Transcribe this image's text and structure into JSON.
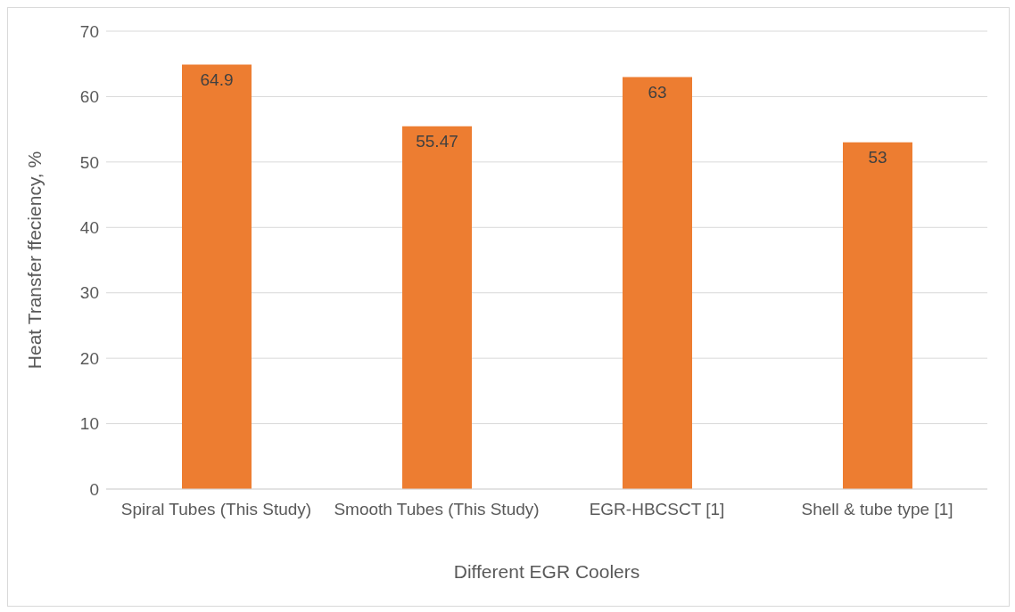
{
  "chart_data": {
    "type": "bar",
    "xlabel": "Different EGR Coolers",
    "ylabel": "Heat Transfer ffeciency, %",
    "categories": [
      "Spiral Tubes (This Study)",
      "Smooth Tubes (This Study)",
      "EGR-HBCSCT [1]",
      "Shell & tube type [1]"
    ],
    "values": [
      64.9,
      55.47,
      63,
      53
    ],
    "color": "#ed7d31",
    "ylim": [
      0,
      70
    ],
    "yticks": [
      0,
      10,
      20,
      30,
      40,
      50,
      60,
      70
    ],
    "grid": "y",
    "data_labels": true,
    "legend": false
  }
}
